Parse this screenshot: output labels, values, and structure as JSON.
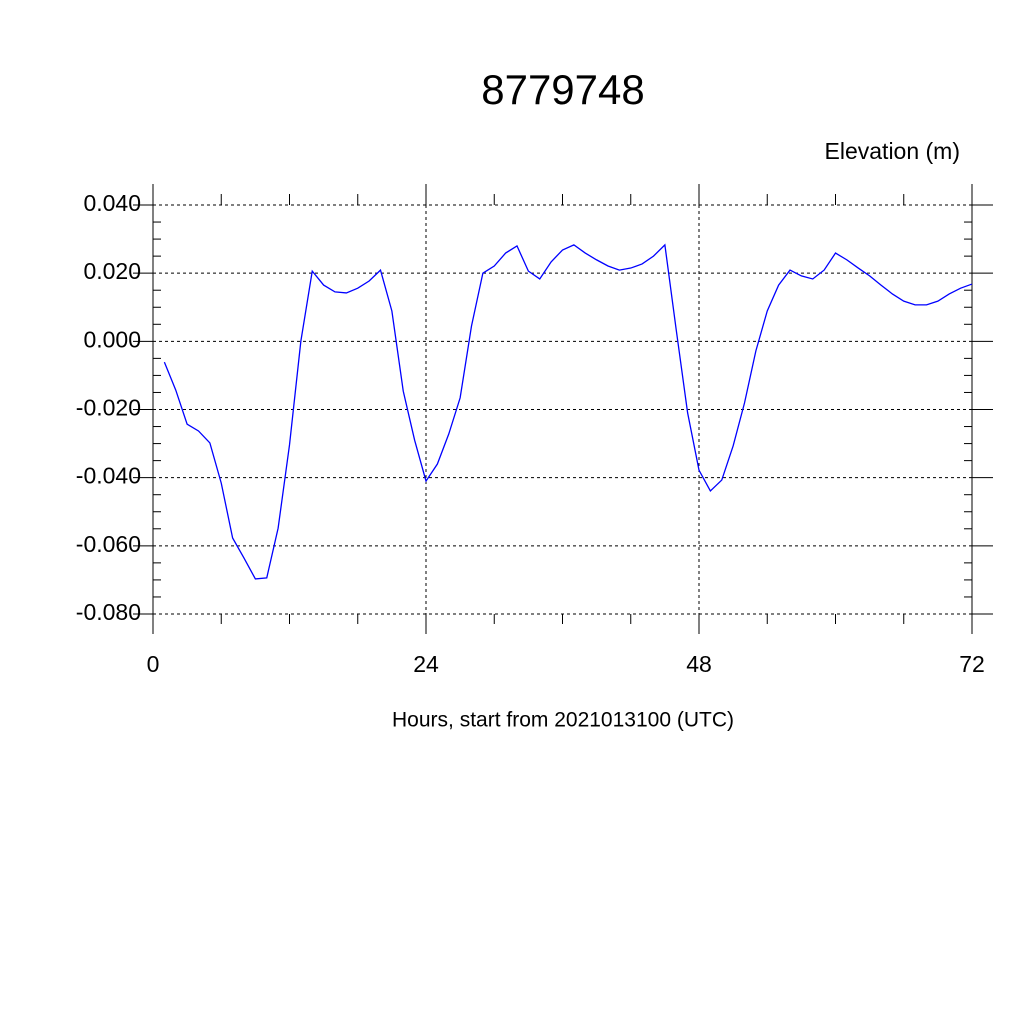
{
  "chart_data": {
    "type": "line",
    "title": "8779748",
    "y_axis_label": "Elevation (m)",
    "x_axis_label": "Hours, start from 2021013100 (UTC)",
    "x": [
      1,
      2,
      3,
      4,
      5,
      6,
      7,
      8,
      9,
      10,
      11,
      12,
      13,
      14,
      15,
      16,
      17,
      18,
      19,
      20,
      21,
      22,
      23,
      24,
      25,
      26,
      27,
      28,
      29,
      30,
      31,
      32,
      33,
      34,
      35,
      36,
      37,
      38,
      39,
      40,
      41,
      42,
      43,
      44,
      45,
      46,
      47,
      48,
      49,
      50,
      51,
      52,
      53,
      54,
      55,
      56,
      57,
      58,
      59,
      60,
      61,
      62,
      63,
      64,
      65,
      66,
      67,
      68,
      69,
      70,
      71,
      72
    ],
    "series": [
      {
        "name": "Elevation",
        "color": "#0000ff",
        "values": [
          -0.0061,
          -0.0143,
          -0.0243,
          -0.0263,
          -0.0298,
          -0.0416,
          -0.0577,
          -0.0636,
          -0.0697,
          -0.0694,
          -0.0548,
          -0.0304,
          0.0001,
          0.0206,
          0.0165,
          0.0145,
          0.0142,
          0.0156,
          0.0177,
          0.0209,
          0.0089,
          -0.0146,
          -0.029,
          -0.041,
          -0.036,
          -0.0272,
          -0.0166,
          0.0045,
          0.02,
          0.0221,
          0.0259,
          0.028,
          0.0206,
          0.0183,
          0.0233,
          0.0268,
          0.0283,
          0.0259,
          0.0239,
          0.0221,
          0.0209,
          0.0215,
          0.0227,
          0.025,
          0.0283,
          0.0033,
          -0.021,
          -0.0378,
          -0.0439,
          -0.0407,
          -0.0307,
          -0.0181,
          -0.0028,
          0.0089,
          0.0165,
          0.0209,
          0.0192,
          0.0183,
          0.0209,
          0.0259,
          0.0239,
          0.0215,
          0.0192,
          0.0165,
          0.0139,
          0.0118,
          0.0107,
          0.0107,
          0.0118,
          0.0139,
          0.0156,
          0.0168
        ]
      }
    ],
    "xlim": [
      0,
      72
    ],
    "xticks": [
      0,
      24,
      48,
      72
    ],
    "ylim": [
      -0.08,
      0.04
    ],
    "yticks": [
      {
        "value": -0.08,
        "label": "-0.080"
      },
      {
        "value": -0.06,
        "label": "-0.060"
      },
      {
        "value": -0.04,
        "label": "-0.040"
      },
      {
        "value": -0.02,
        "label": "-0.020"
      },
      {
        "value": 0,
        "label": "0.000"
      },
      {
        "value": 0.02,
        "label": "0.020"
      },
      {
        "value": 0.04,
        "label": "0.040"
      }
    ],
    "grid": true
  }
}
